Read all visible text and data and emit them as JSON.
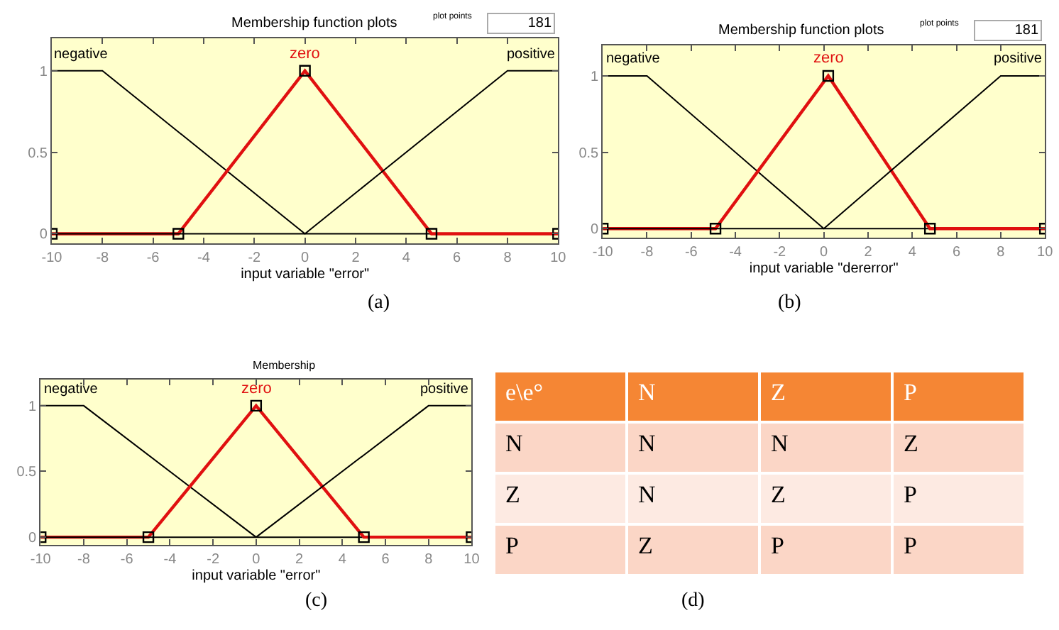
{
  "chart_data": [
    {
      "type": "line",
      "title": "Membership function plots",
      "xlabel": "input variable \"error\"",
      "annotations": [
        "plot points",
        "181",
        "(a)"
      ],
      "xlim": [
        -10,
        10
      ],
      "xticks": [
        -10,
        -8,
        -6,
        -4,
        -2,
        0,
        2,
        4,
        6,
        8,
        10
      ],
      "ylim": [
        -0.06,
        1.2
      ],
      "yticks": [
        0,
        0.5,
        1
      ],
      "grid": false,
      "series": [
        {
          "name": "negative",
          "color": "#000000",
          "marker": "none",
          "x": [
            -10,
            -8,
            0,
            10
          ],
          "values": [
            1,
            1,
            0,
            0
          ]
        },
        {
          "name": "zero",
          "color": "#e01010",
          "marker": "square",
          "x": [
            -10,
            -5,
            0,
            5,
            10
          ],
          "values": [
            0,
            0,
            1,
            0,
            0
          ]
        },
        {
          "name": "positive",
          "color": "#000000",
          "marker": "none",
          "x": [
            -10,
            0,
            8,
            10
          ],
          "values": [
            0,
            0,
            1,
            1
          ]
        }
      ]
    },
    {
      "type": "line",
      "title": "Membership function plots",
      "xlabel": "input variable \"dererror\"",
      "annotations": [
        "plot points",
        "181",
        "(b)"
      ],
      "xlim": [
        -10,
        10
      ],
      "xticks": [
        -10,
        -8,
        -6,
        -4,
        -2,
        0,
        2,
        4,
        6,
        8,
        10
      ],
      "ylim": [
        -0.06,
        1.2
      ],
      "yticks": [
        0,
        0.5,
        1
      ],
      "grid": false,
      "series": [
        {
          "name": "negative",
          "color": "#000000",
          "marker": "none",
          "x": [
            -10,
            -8,
            0,
            10
          ],
          "values": [
            1,
            1,
            0,
            0
          ]
        },
        {
          "name": "zero",
          "color": "#e01010",
          "marker": "square",
          "x": [
            -10,
            -4.9,
            0.2,
            4.8,
            10
          ],
          "values": [
            0,
            0,
            1,
            0,
            0
          ]
        },
        {
          "name": "positive",
          "color": "#000000",
          "marker": "none",
          "x": [
            -10,
            0,
            8,
            10
          ],
          "values": [
            0,
            0,
            1,
            1
          ]
        }
      ]
    },
    {
      "type": "line",
      "title": "Membership",
      "xlabel": "input variable \"error\"",
      "annotations": [
        "(c)"
      ],
      "xlim": [
        -10,
        10
      ],
      "xticks": [
        -10,
        -8,
        -6,
        -4,
        -2,
        0,
        2,
        4,
        6,
        8,
        10
      ],
      "ylim": [
        -0.06,
        1.2
      ],
      "yticks": [
        0,
        0.5,
        1
      ],
      "grid": false,
      "series": [
        {
          "name": "negative",
          "color": "#000000",
          "marker": "none",
          "x": [
            -10,
            -8,
            0,
            10
          ],
          "values": [
            1,
            1,
            0,
            0
          ]
        },
        {
          "name": "zero",
          "color": "#e01010",
          "marker": "square",
          "x": [
            -10,
            -5,
            0,
            5,
            10
          ],
          "values": [
            0,
            0,
            1,
            0,
            0
          ]
        },
        {
          "name": "positive",
          "color": "#000000",
          "marker": "none",
          "x": [
            -10,
            0,
            8,
            10
          ],
          "values": [
            0,
            0,
            1,
            1
          ]
        }
      ]
    },
    {
      "type": "other",
      "categories": [
        "e\\e°",
        "N",
        "Z",
        "P"
      ],
      "colors": [
        "#f58634",
        "#f58634",
        "#f58634",
        "#f58634"
      ],
      "cell_labels": [
        [
          "N",
          "N",
          "N",
          "Z"
        ],
        [
          "Z",
          "N",
          "Z",
          "P"
        ],
        [
          "P",
          "Z",
          "P",
          "P"
        ]
      ],
      "annotations": [
        "(d)"
      ]
    }
  ]
}
